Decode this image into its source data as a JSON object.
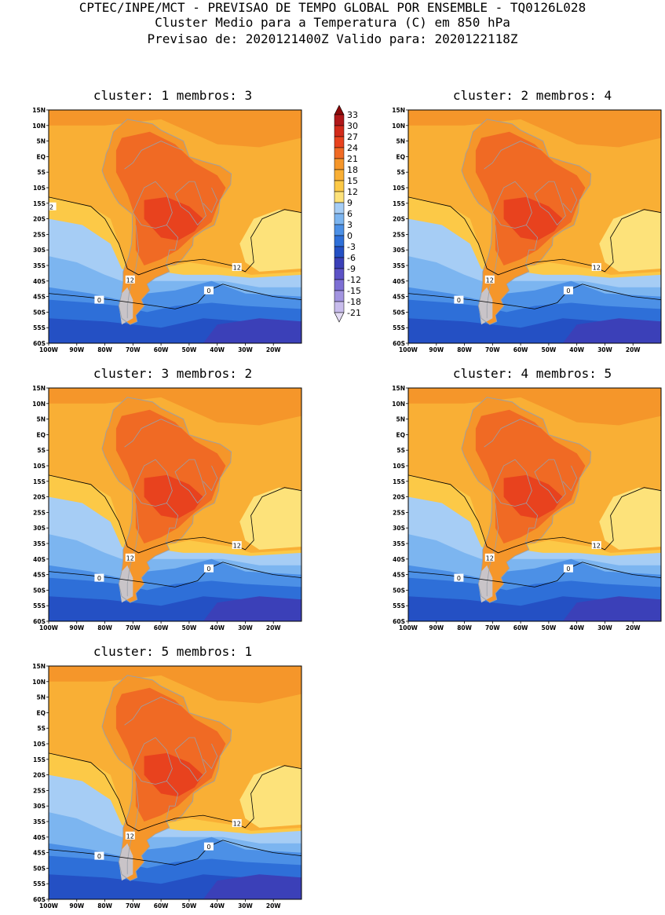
{
  "header": {
    "line1": "CPTEC/INPE/MCT - PREVISAO DE TEMPO GLOBAL POR ENSEMBLE - TQ0126L028",
    "line2": "Cluster Medio para a Temperatura (C) em 850 hPa",
    "line3": "Previsao de: 2020121400Z   Valido para: 2020122118Z"
  },
  "panels": [
    {
      "title": "cluster: 1   membros: 3"
    },
    {
      "title": "cluster: 2   membros: 4"
    },
    {
      "title": "cluster: 3   membros: 2"
    },
    {
      "title": "cluster: 4   membros: 5"
    },
    {
      "title": "cluster: 5   membros: 1"
    }
  ],
  "axes": {
    "lat_labels": [
      "15N",
      "10N",
      "5N",
      "EQ",
      "5S",
      "10S",
      "15S",
      "20S",
      "25S",
      "30S",
      "35S",
      "40S",
      "45S",
      "50S",
      "55S",
      "60S"
    ],
    "lon_labels": [
      "100W",
      "90W",
      "80W",
      "70W",
      "60W",
      "50W",
      "40W",
      "30W",
      "20W"
    ]
  },
  "contour_labels": {
    "c12": "12",
    "c0": "0",
    "c2": "2"
  },
  "colorbar": {
    "labels": [
      "33",
      "30",
      "27",
      "24",
      "21",
      "18",
      "15",
      "12",
      "9",
      "6",
      "3",
      "0",
      "-3",
      "-6",
      "-9",
      "-12",
      "-15",
      "-18",
      "-21"
    ],
    "colors": [
      "#8c0a0a",
      "#b0181a",
      "#d22a1a",
      "#e8421e",
      "#f06a24",
      "#f5962a",
      "#f9af35",
      "#fcc947",
      "#fde27a",
      "#a6cdf5",
      "#7cb5f0",
      "#4c90e6",
      "#2e6fd8",
      "#2450c4",
      "#3b40b8",
      "#5c52c6",
      "#7d6fd4",
      "#a294e0",
      "#c8bcec",
      "#e4dcf4"
    ]
  },
  "map_colors": {
    "c_15": "#f9af35",
    "c_12": "#fcc947",
    "c_9": "#fde27a",
    "c_18": "#f5962a",
    "c_21": "#f06a24",
    "c_24": "#e8421e",
    "c_6": "#a6cdf5",
    "c_3": "#7cb5f0",
    "c_0": "#4c90e6",
    "c_m3": "#2e6fd8",
    "c_m6": "#2450c4",
    "c_m9": "#3b40b8",
    "c_m12": "#5c52c6"
  }
}
